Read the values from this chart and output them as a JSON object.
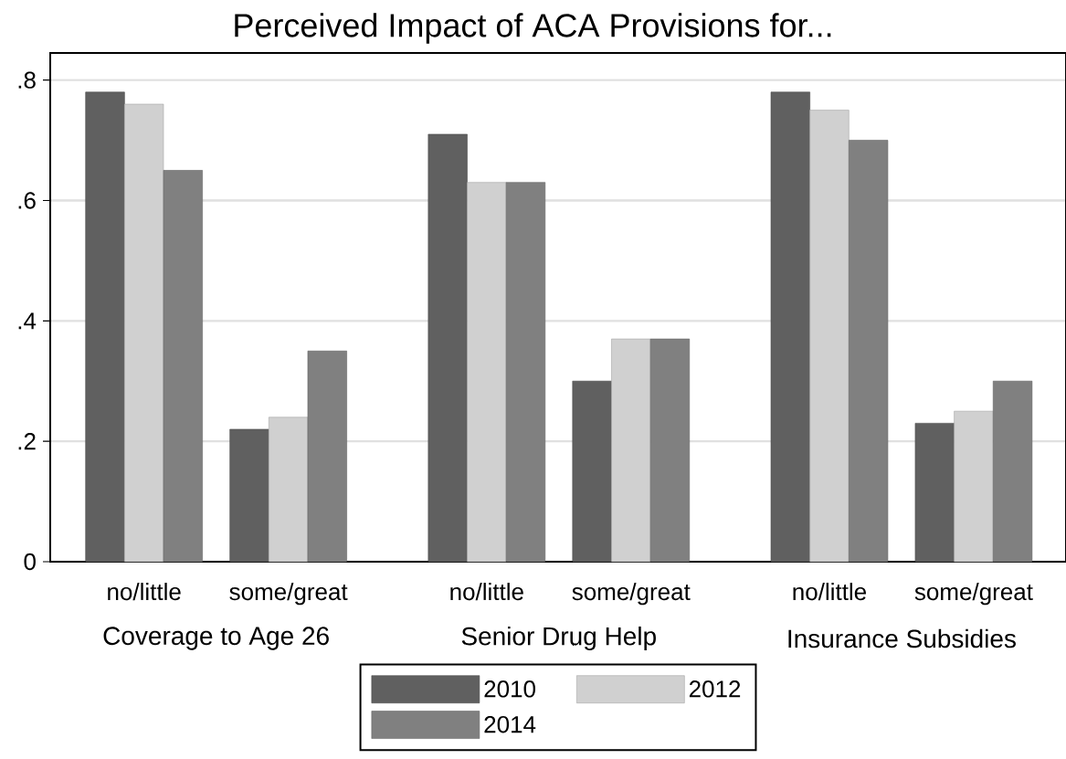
{
  "chart_data": {
    "type": "bar",
    "title": "Perceived Impact of ACA Provisions for...",
    "categories": [
      "no/little",
      "some/great",
      "no/little",
      "some/great",
      "no/little",
      "some/great"
    ],
    "series": [
      {
        "name": "2010",
        "color": "#606060",
        "values": [
          0.78,
          0.22,
          0.71,
          0.3,
          0.78,
          0.23
        ]
      },
      {
        "name": "2012",
        "color": "#d0d0d0",
        "values": [
          0.76,
          0.24,
          0.63,
          0.37,
          0.75,
          0.25
        ]
      },
      {
        "name": "2014",
        "color": "#808080",
        "values": [
          0.65,
          0.35,
          0.63,
          0.37,
          0.7,
          0.3
        ]
      }
    ],
    "annotations": [
      "Coverage to Age 26",
      "Senior Drug Help",
      "Insurance Subsidies"
    ],
    "ylim": [
      0,
      0.845
    ],
    "yticks": [
      {
        "value": 0,
        "label": "0"
      },
      {
        "value": 0.2,
        "label": ".2"
      },
      {
        "value": 0.4,
        "label": ".4"
      },
      {
        "value": 0.6,
        "label": ".6"
      },
      {
        "value": 0.8,
        "label": ".8"
      }
    ],
    "grid": "y",
    "legend": "bottom"
  }
}
